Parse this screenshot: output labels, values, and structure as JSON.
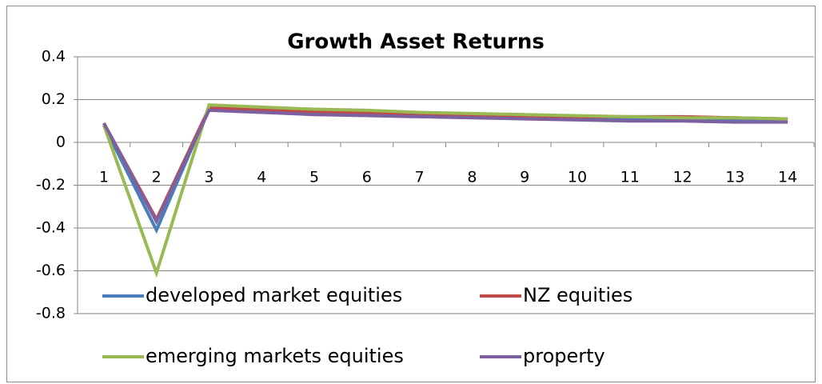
{
  "chart_data": {
    "type": "line",
    "title": "Growth Asset Returns",
    "x": [
      1,
      2,
      3,
      4,
      5,
      6,
      7,
      8,
      9,
      10,
      11,
      12,
      13,
      14
    ],
    "xlim": [
      0.5,
      14.5
    ],
    "ylim": [
      -0.8,
      0.4
    ],
    "yticks": [
      -0.8,
      -0.6,
      -0.4,
      -0.2,
      0,
      0.2,
      0.4
    ],
    "grid": true,
    "legend": "lower left",
    "series": [
      {
        "name": "developed market equities",
        "color": "#4a7ebb",
        "values": [
          0.08,
          -0.41,
          0.16,
          0.15,
          0.14,
          0.135,
          0.13,
          0.125,
          0.12,
          0.115,
          0.11,
          0.11,
          0.105,
          0.1
        ]
      },
      {
        "name": "NZ equities",
        "color": "#be4b48",
        "values": [
          0.09,
          -0.36,
          0.16,
          0.155,
          0.145,
          0.14,
          0.135,
          0.13,
          0.125,
          0.12,
          0.12,
          0.12,
          0.115,
          0.11
        ]
      },
      {
        "name": "emerging markets equities",
        "color": "#98b954",
        "values": [
          0.08,
          -0.61,
          0.175,
          0.165,
          0.155,
          0.15,
          0.14,
          0.135,
          0.13,
          0.125,
          0.12,
          0.115,
          0.115,
          0.11
        ]
      },
      {
        "name": "property",
        "color": "#7d60a0",
        "values": [
          0.09,
          -0.37,
          0.15,
          0.14,
          0.13,
          0.125,
          0.12,
          0.115,
          0.11,
          0.105,
          0.1,
          0.1,
          0.095,
          0.095
        ]
      }
    ]
  }
}
